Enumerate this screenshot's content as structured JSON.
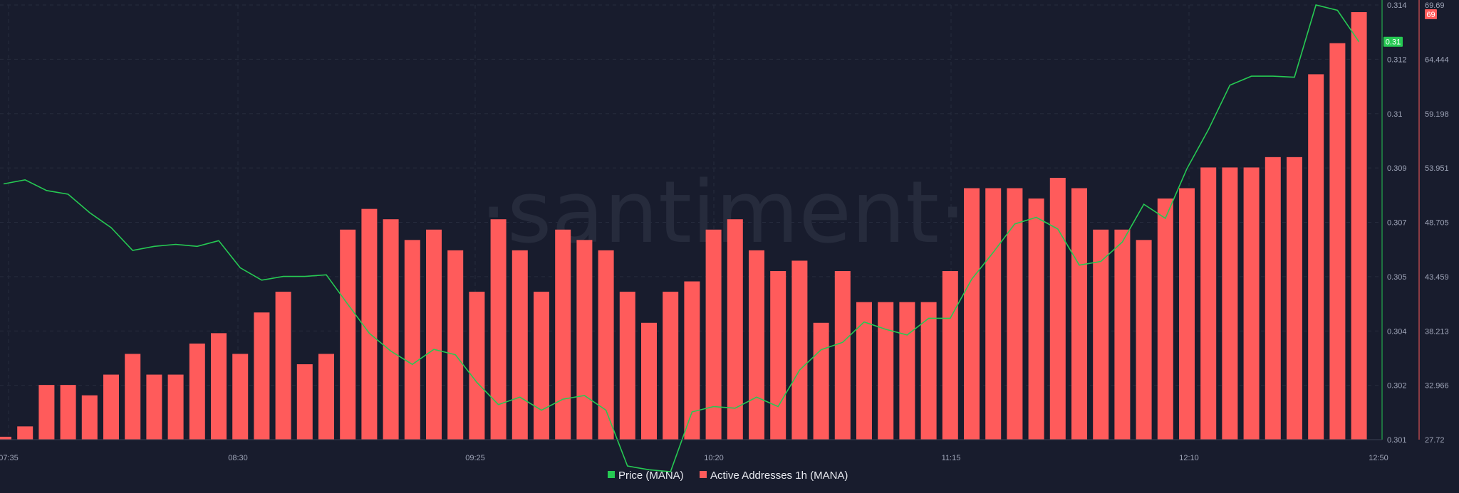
{
  "watermark": "·santiment·",
  "chart_data": {
    "type": "bar",
    "x_ticks": [
      "07:35",
      "08:30",
      "09:25",
      "10:20",
      "11:15",
      "12:10",
      "12:50"
    ],
    "right_axis_price": {
      "ticks": [
        "0.301",
        "0.302",
        "0.304",
        "0.305",
        "0.307",
        "0.309",
        "0.31",
        "0.312",
        "0.314"
      ],
      "ylim": [
        0.301,
        0.314
      ],
      "current_label": "0.31",
      "color": "#26c953"
    },
    "right_axis_addresses": {
      "ticks": [
        "27.72",
        "32.966",
        "38.213",
        "43.459",
        "48.705",
        "53.951",
        "59.198",
        "64.444",
        "69.69"
      ],
      "ylim": [
        27.72,
        69.69
      ],
      "current_label": "69",
      "color": "#ff5b5b"
    },
    "series": [
      {
        "name": "Price (MANA)",
        "type": "line",
        "axis": "price",
        "color": "#26c953",
        "values": [
          0.30865,
          0.30877,
          0.30845,
          0.30834,
          0.30779,
          0.30734,
          0.30666,
          0.30678,
          0.30684,
          0.30678,
          0.30695,
          0.30614,
          0.30577,
          0.30588,
          0.30588,
          0.30593,
          0.30505,
          0.30418,
          0.30365,
          0.30325,
          0.3037,
          0.30354,
          0.30271,
          0.30205,
          0.30227,
          0.30188,
          0.30221,
          0.30232,
          0.30188,
          0.30021,
          0.3001,
          0.30004,
          0.30183,
          0.30199,
          0.30194,
          0.30227,
          0.30199,
          0.30308,
          0.30369,
          0.30391,
          0.30452,
          0.3043,
          0.30413,
          0.30463,
          0.30463,
          0.3058,
          0.3066,
          0.30745,
          0.30765,
          0.3073,
          0.30622,
          0.30633,
          0.30691,
          0.30804,
          0.30762,
          0.3091,
          0.31027,
          0.3116,
          0.31187,
          0.31187,
          0.31184,
          0.314,
          0.31384,
          0.3129
        ]
      },
      {
        "name": "Active Addresses 1h (MANA)",
        "type": "bar",
        "axis": "addresses",
        "color": "#ff5b5b",
        "values": [
          28,
          29,
          33,
          33,
          32,
          34,
          36,
          34,
          34,
          37,
          38,
          36,
          40,
          42,
          35,
          36,
          48,
          50,
          49,
          47,
          48,
          46,
          42,
          49,
          46,
          42,
          48,
          47,
          46,
          42,
          39,
          42,
          43,
          48,
          49,
          46,
          44,
          45,
          39,
          44,
          41,
          41,
          41,
          41,
          44,
          52,
          52,
          52,
          51,
          53,
          52,
          48,
          48,
          47,
          51,
          52,
          54,
          54,
          54,
          55,
          55,
          63,
          66,
          69
        ]
      }
    ],
    "legend": {
      "placement": "bottom-center"
    }
  }
}
